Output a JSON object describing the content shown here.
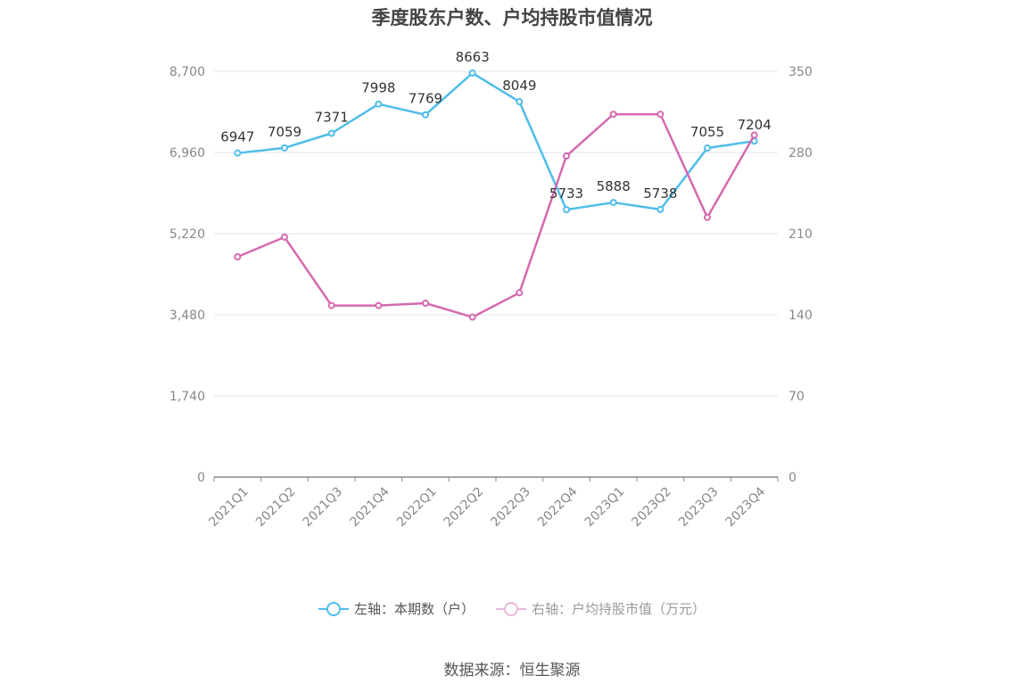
{
  "chart_data": {
    "type": "line",
    "title": "季度股东户数、户均持股市值情况",
    "categories": [
      "2021Q1",
      "2021Q2",
      "2021Q3",
      "2021Q4",
      "2022Q1",
      "2022Q2",
      "2022Q3",
      "2022Q4",
      "2023Q1",
      "2023Q2",
      "2023Q3",
      "2023Q4"
    ],
    "left_axis": {
      "ticks": [
        "0",
        "1,740",
        "3,480",
        "5,220",
        "6,960",
        "8,700"
      ],
      "ylim": [
        0,
        8700
      ]
    },
    "right_axis": {
      "ticks": [
        "0",
        "70",
        "140",
        "210",
        "280",
        "350"
      ],
      "ylim": [
        0,
        350
      ]
    },
    "series": [
      {
        "name": "左轴：本期数（户）",
        "axis": "left",
        "color": "#4fbde9",
        "values": [
          6947,
          7059,
          7371,
          7998,
          7769,
          8663,
          8049,
          5733,
          5888,
          5738,
          7055,
          7204
        ],
        "labels": [
          "6947",
          "7059",
          "7371",
          "7998",
          "7769",
          "8663",
          "8049",
          "5733",
          "5888",
          "5738",
          "7055",
          "7204"
        ]
      },
      {
        "name": "右轴：户均持股市值（万元）",
        "axis": "right",
        "color": "#d46aaf",
        "values": [
          190,
          207,
          148,
          148,
          150,
          138,
          159,
          277,
          313,
          313,
          224,
          295
        ]
      }
    ],
    "grid": true,
    "legend_position": "bottom-center"
  },
  "source": "数据来源：恒生聚源"
}
